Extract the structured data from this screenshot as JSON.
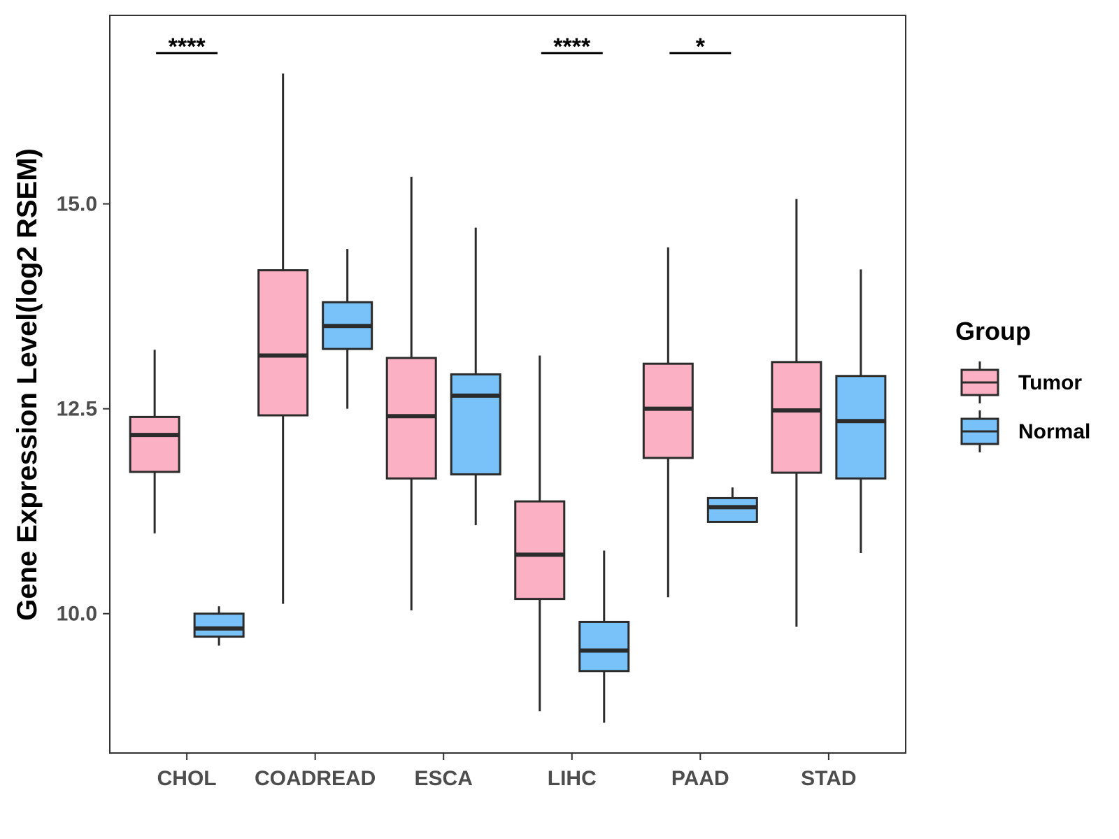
{
  "chart_data": {
    "type": "boxplot",
    "title": "",
    "xlabel": "",
    "ylabel": "Gene Expression Level(log2 RSEM)",
    "ylim": [
      8.3,
      17.3
    ],
    "yticks": [
      10.0,
      12.5,
      15.0
    ],
    "ytick_labels": [
      "10.0",
      "12.5",
      "15.0"
    ],
    "categories": [
      "CHOL",
      "COADREAD",
      "ESCA",
      "LIHC",
      "PAAD",
      "STAD"
    ],
    "legend": {
      "title": "Group",
      "position": "right",
      "entries": [
        {
          "label": "Tumor",
          "color": "#fbb1c3"
        },
        {
          "label": "Normal",
          "color": "#79c2f9"
        }
      ]
    },
    "series": [
      {
        "name": "Tumor",
        "color": "#fbb1c3",
        "boxes": [
          {
            "min": 10.98,
            "q1": 11.73,
            "median": 12.18,
            "q3": 12.4,
            "max": 13.22
          },
          {
            "min": 10.12,
            "q1": 12.42,
            "median": 13.15,
            "q3": 14.19,
            "max": 16.59
          },
          {
            "min": 10.04,
            "q1": 11.65,
            "median": 12.41,
            "q3": 13.12,
            "max": 15.33
          },
          {
            "min": 8.81,
            "q1": 10.18,
            "median": 10.72,
            "q3": 11.37,
            "max": 13.15
          },
          {
            "min": 10.2,
            "q1": 11.9,
            "median": 12.5,
            "q3": 13.05,
            "max": 14.47
          },
          {
            "min": 9.84,
            "q1": 11.72,
            "median": 12.48,
            "q3": 13.07,
            "max": 15.06
          }
        ]
      },
      {
        "name": "Normal",
        "color": "#79c2f9",
        "boxes": [
          {
            "min": 9.61,
            "q1": 9.72,
            "median": 9.82,
            "q3": 10.0,
            "max": 10.09
          },
          {
            "min": 12.5,
            "q1": 13.23,
            "median": 13.51,
            "q3": 13.8,
            "max": 14.45
          },
          {
            "min": 11.08,
            "q1": 11.7,
            "median": 12.66,
            "q3": 12.92,
            "max": 14.71
          },
          {
            "min": 8.67,
            "q1": 9.3,
            "median": 9.55,
            "q3": 9.9,
            "max": 10.77
          },
          {
            "min": 11.12,
            "q1": 11.12,
            "median": 11.3,
            "q3": 11.41,
            "max": 11.54
          },
          {
            "min": 10.74,
            "q1": 11.65,
            "median": 12.35,
            "q3": 12.9,
            "max": 14.2
          }
        ]
      }
    ],
    "significance": [
      {
        "category": "CHOL",
        "label": "****",
        "y": 16.84
      },
      {
        "category": "LIHC",
        "label": "****",
        "y": 16.84
      },
      {
        "category": "PAAD",
        "label": "*",
        "y": 16.84
      }
    ]
  }
}
